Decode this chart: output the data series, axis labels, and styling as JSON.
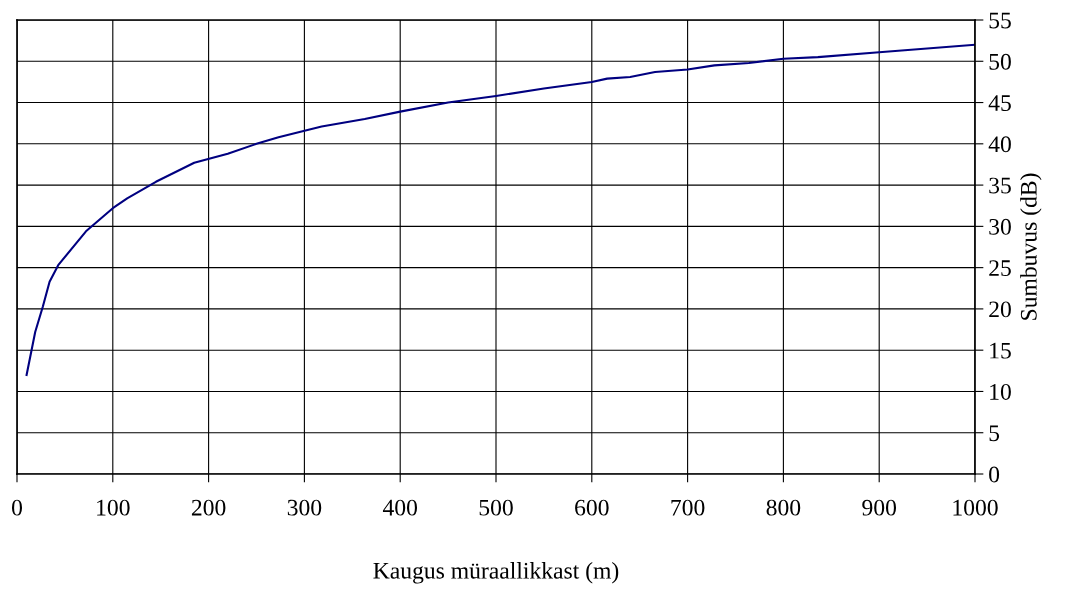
{
  "chart_data": {
    "type": "line",
    "xlabel": "Kaugus müraallikkast (m)",
    "ylabel": "Sumbuvus (dB)",
    "x": [
      10,
      19,
      27,
      34,
      43,
      72,
      100,
      115,
      145,
      185,
      220,
      250,
      273,
      297,
      318,
      363,
      400,
      450,
      500,
      550,
      600,
      616,
      640,
      666,
      700,
      728,
      764,
      800,
      836,
      900,
      1000
    ],
    "series": [
      {
        "color": "#000080",
        "values": [
          12,
          17.2,
          20.3,
          23.3,
          25.3,
          29.4,
          32.2,
          33.4,
          35.4,
          37.7,
          38.8,
          40,
          40.8,
          41.5,
          42.1,
          43,
          43.9,
          45,
          45.8,
          46.7,
          47.5,
          47.9,
          48.1,
          48.7,
          49,
          49.5,
          49.8,
          50.3,
          50.5,
          51.1,
          52
        ]
      }
    ],
    "xlim": [
      0,
      1000
    ],
    "xticks": [
      0,
      100,
      200,
      300,
      400,
      500,
      600,
      700,
      800,
      900,
      1000
    ],
    "ylim": [
      0,
      55
    ],
    "yticks": [
      0,
      5,
      10,
      15,
      20,
      25,
      30,
      35,
      40,
      45,
      50,
      55
    ],
    "grid": true,
    "marker": "none",
    "line_style": "solid"
  }
}
